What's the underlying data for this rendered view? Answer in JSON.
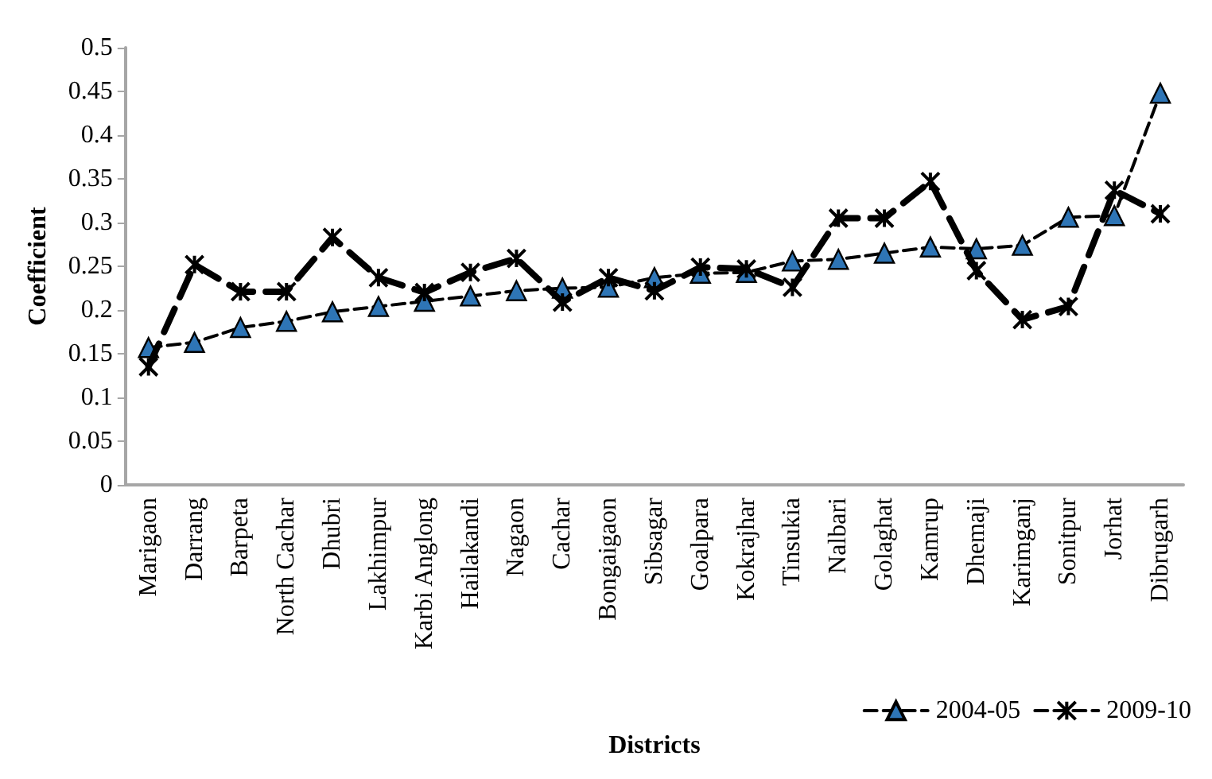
{
  "chart_data": {
    "type": "line",
    "xlabel": "Districts",
    "ylabel": "Coefficient",
    "categories": [
      "Marigaon",
      "Darrang",
      "Barpeta",
      "North Cachar",
      "Dhubri",
      "Lakhimpur",
      "Karbi Anglong",
      "Hailakandi",
      "Nagaon",
      "Cachar",
      "Bongaigaon",
      "Sibsagar",
      "Goalpara",
      "Kokrajhar",
      "Tinsukia",
      "Nalbari",
      "Golaghat",
      "Kamrup",
      "Dhemaji",
      "Karimganj",
      "Sonitpur",
      "Jorhat",
      "Dibrugarh"
    ],
    "series": [
      {
        "name": "2004-05",
        "color": "#2e75b6",
        "marker": "triangle",
        "line_style": "dashed",
        "values": [
          0.157,
          0.163,
          0.18,
          0.187,
          0.198,
          0.204,
          0.21,
          0.216,
          0.222,
          0.225,
          0.226,
          0.237,
          0.242,
          0.243,
          0.256,
          0.258,
          0.265,
          0.272,
          0.27,
          0.274,
          0.306,
          0.308,
          0.448
        ]
      },
      {
        "name": "2009-10",
        "color": "#000000",
        "marker": "cross",
        "line_style": "dashed",
        "values": [
          0.135,
          0.252,
          0.221,
          0.221,
          0.283,
          0.237,
          0.22,
          0.243,
          0.259,
          0.209,
          0.237,
          0.222,
          0.249,
          0.247,
          0.226,
          0.305,
          0.305,
          0.347,
          0.245,
          0.189,
          0.204,
          0.337,
          0.31
        ]
      }
    ],
    "ylim": [
      0,
      0.5
    ],
    "yticks": [
      0,
      0.05,
      0.1,
      0.15,
      0.2,
      0.25,
      0.3,
      0.35,
      0.4,
      0.45,
      0.5
    ],
    "legend": "bottom right"
  }
}
